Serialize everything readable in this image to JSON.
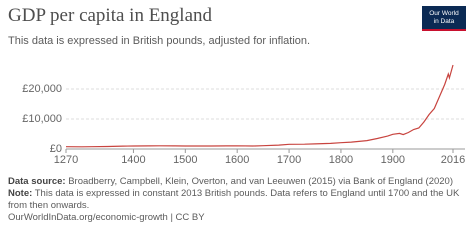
{
  "chart_data": {
    "type": "line",
    "title": "GDP per capita in England",
    "subtitle": "This data is expressed in British pounds, adjusted for inflation.",
    "x": [
      1270,
      1300,
      1320,
      1350,
      1380,
      1400,
      1430,
      1450,
      1480,
      1500,
      1530,
      1550,
      1580,
      1600,
      1630,
      1650,
      1680,
      1700,
      1730,
      1750,
      1780,
      1800,
      1820,
      1850,
      1870,
      1890,
      1900,
      1913,
      1920,
      1930,
      1940,
      1950,
      1960,
      1970,
      1980,
      1990,
      2000,
      2007,
      2009,
      2016
    ],
    "values": [
      760,
      740,
      780,
      820,
      980,
      1000,
      1020,
      1050,
      1030,
      1000,
      990,
      1010,
      1020,
      1050,
      1000,
      1100,
      1300,
      1550,
      1600,
      1700,
      1850,
      2100,
      2300,
      2800,
      3500,
      4300,
      4900,
      5200,
      4800,
      5500,
      6500,
      7000,
      9000,
      11500,
      13500,
      17500,
      21500,
      25000,
      23700,
      28000
    ],
    "color": "#c8443f",
    "xlim": [
      1270,
      2016
    ],
    "xticks": [
      1270,
      1400,
      1500,
      1600,
      1700,
      1800,
      1900,
      2016
    ],
    "ylim": [
      0,
      30000
    ],
    "yticks": [
      {
        "value": 0,
        "label": "£0"
      },
      {
        "value": 10000,
        "label": "£10,000"
      },
      {
        "value": 20000,
        "label": "£20,000"
      }
    ],
    "grid": true
  },
  "logo": [
    "Our World",
    "in Data"
  ],
  "footer": {
    "source_label": "Data source:",
    "source": "Broadberry, Campbell, Klein, Overton, and van Leeuwen (2015) via Bank of England (2020)",
    "note_label": "Note:",
    "note": "This data is expressed in constant 2013 British pounds. Data refers to England until 1700 and the UK from then onwards.",
    "links": "OurWorldInData.org/economic-growth | CC BY"
  }
}
